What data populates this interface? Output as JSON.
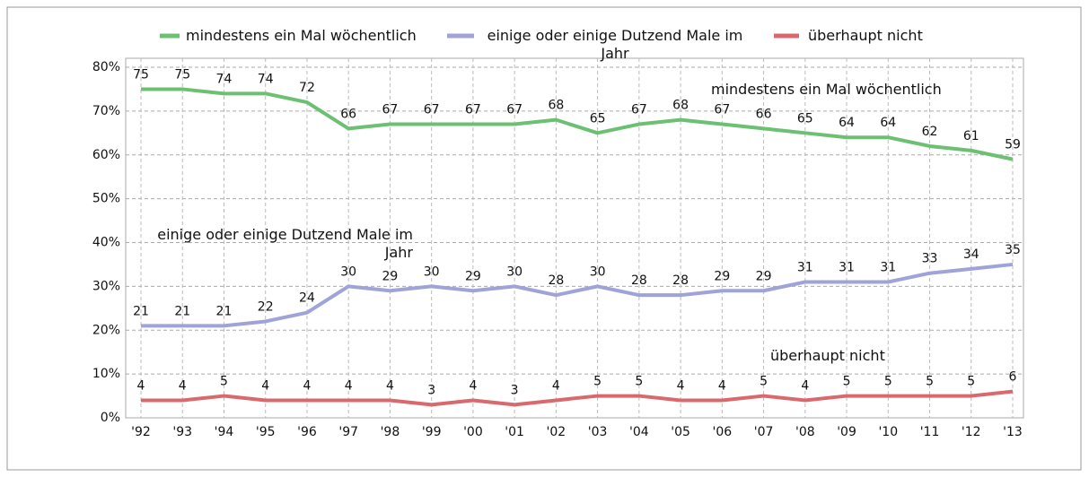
{
  "chart_data": {
    "type": "line",
    "categories": [
      "'92",
      "'93",
      "'94",
      "'95",
      "'96",
      "'97",
      "'98",
      "'99",
      "'00",
      "'01",
      "'02",
      "'03",
      "'04",
      "'05",
      "'06",
      "'07",
      "'08",
      "'09",
      "'10",
      "'11",
      "'12",
      "'13"
    ],
    "series": [
      {
        "name": "mindestens ein Mal wöchentlich",
        "color": "#6cc071",
        "values": [
          75,
          75,
          74,
          74,
          72,
          66,
          67,
          67,
          67,
          67,
          68,
          65,
          67,
          68,
          67,
          66,
          65,
          64,
          64,
          62,
          61,
          59
        ]
      },
      {
        "name": "einige oder einige Dutzend Male im Jahr",
        "color": "#9fa3d8",
        "values": [
          21,
          21,
          21,
          22,
          24,
          30,
          29,
          30,
          29,
          30,
          28,
          30,
          28,
          28,
          29,
          29,
          31,
          31,
          31,
          33,
          34,
          35
        ]
      },
      {
        "name": "überhaupt nicht",
        "color": "#d9696c",
        "values": [
          4,
          4,
          5,
          4,
          4,
          4,
          4,
          3,
          4,
          3,
          4,
          5,
          5,
          4,
          4,
          5,
          4,
          5,
          5,
          5,
          5,
          6
        ]
      }
    ],
    "annotations": [
      "mindestens ein Mal wöchentlich",
      "einige oder einige Dutzend Male im Jahr",
      "überhaupt nicht"
    ],
    "ylim": [
      0,
      80
    ],
    "yticks": [
      {
        "value": 0,
        "label": "0%"
      },
      {
        "value": 10,
        "label": "10%"
      },
      {
        "value": 20,
        "label": "20%"
      },
      {
        "value": 30,
        "label": "30%"
      },
      {
        "value": 40,
        "label": "40%"
      },
      {
        "value": 50,
        "label": "50%"
      },
      {
        "value": 60,
        "label": "60%"
      },
      {
        "value": 70,
        "label": "70%"
      },
      {
        "value": 80,
        "label": "80%"
      }
    ],
    "grid": true
  }
}
